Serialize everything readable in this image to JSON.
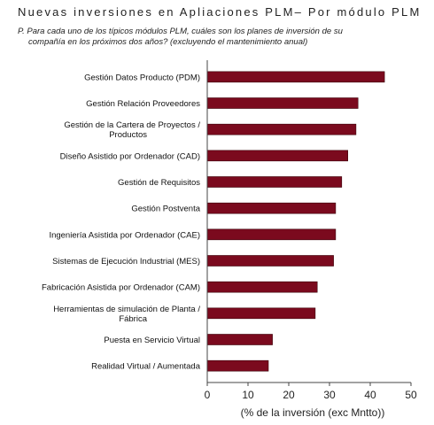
{
  "title": "Nuevas inversiones en Apliaciones PLM– Por módulo PLM",
  "question": {
    "line1": "P. Para cada uno de los típicos módulos PLM, cuáles son los planes de inversión de su",
    "line2": "compañía en los próximos dos años? (excluyendo el mantenimiento anual)"
  },
  "chart_data": {
    "type": "bar",
    "orientation": "horizontal",
    "title": "Nuevas inversiones en Apliaciones PLM– Por módulo PLM",
    "xlabel": "(% de la inversión (exc Mntto))",
    "ylabel": "",
    "xlim": [
      0,
      50
    ],
    "xticks": [
      0,
      10,
      20,
      30,
      40,
      50
    ],
    "grid": false,
    "bar_color": "#7b0a1e",
    "categories": [
      [
        "Gestión Datos Producto (PDM)"
      ],
      [
        "Gestión Relación Proveedores"
      ],
      [
        "Gestión de la Cartera de Proyectos /",
        "Productos"
      ],
      [
        "Diseño Asistido por Ordenador (CAD)"
      ],
      [
        "Gestión de Requisitos"
      ],
      [
        "Gestión Postventa"
      ],
      [
        "Ingeniería Asistida por Ordenador (CAE)"
      ],
      [
        "Sistemas de Ejecución Industrial (MES)"
      ],
      [
        "Fabricación Asistida por Ordenador (CAM)"
      ],
      [
        "Herramientas de simulación de Planta  /",
        "Fábrica"
      ],
      [
        "Puesta en Servicio Virtual"
      ],
      [
        "Realidad Virtual / Aumentada"
      ]
    ],
    "values": [
      43.5,
      37,
      36.5,
      34.5,
      33,
      31.5,
      31.5,
      31,
      27,
      26.5,
      16,
      15
    ]
  }
}
